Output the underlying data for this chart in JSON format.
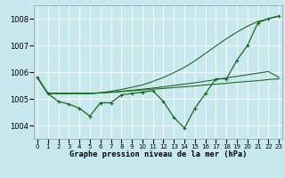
{
  "bg_color": "#c8e8f0",
  "grid_color": "#b0d8e0",
  "line_color": "#1a6b1a",
  "xlabel": "Graphe pression niveau de la mer (hPa)",
  "ylim": [
    1003.5,
    1008.5
  ],
  "xlim": [
    -0.3,
    23.3
  ],
  "yticks": [
    1004,
    1005,
    1006,
    1007,
    1008
  ],
  "x": [
    0,
    1,
    2,
    3,
    4,
    5,
    6,
    7,
    8,
    9,
    10,
    11,
    12,
    13,
    14,
    15,
    16,
    17,
    18,
    19,
    20,
    21,
    22,
    23
  ],
  "main_y": [
    1005.8,
    1005.2,
    1004.9,
    1004.8,
    1004.65,
    1004.35,
    1004.85,
    1004.85,
    1005.15,
    1005.2,
    1005.25,
    1005.3,
    1004.9,
    1004.3,
    1003.9,
    1004.65,
    1005.2,
    1005.75,
    1005.75,
    1006.45,
    1007.0,
    1007.85,
    1008.0,
    1008.1
  ],
  "trend_flat_y": [
    1005.8,
    1005.2,
    1005.2,
    1005.2,
    1005.2,
    1005.2,
    1005.22,
    1005.24,
    1005.27,
    1005.3,
    1005.33,
    1005.36,
    1005.39,
    1005.42,
    1005.45,
    1005.48,
    1005.52,
    1005.55,
    1005.58,
    1005.62,
    1005.65,
    1005.68,
    1005.72,
    1005.75
  ],
  "trend_mid_y": [
    1005.8,
    1005.2,
    1005.2,
    1005.2,
    1005.2,
    1005.2,
    1005.22,
    1005.25,
    1005.28,
    1005.32,
    1005.36,
    1005.4,
    1005.45,
    1005.5,
    1005.55,
    1005.6,
    1005.66,
    1005.72,
    1005.78,
    1005.84,
    1005.9,
    1005.96,
    1006.02,
    1005.8
  ],
  "trend_steep_y": [
    1005.8,
    1005.2,
    1005.2,
    1005.2,
    1005.2,
    1005.2,
    1005.23,
    1005.28,
    1005.35,
    1005.43,
    1005.52,
    1005.65,
    1005.8,
    1005.98,
    1006.18,
    1006.42,
    1006.7,
    1006.98,
    1007.25,
    1007.5,
    1007.72,
    1007.9,
    1008.0,
    1008.1
  ]
}
